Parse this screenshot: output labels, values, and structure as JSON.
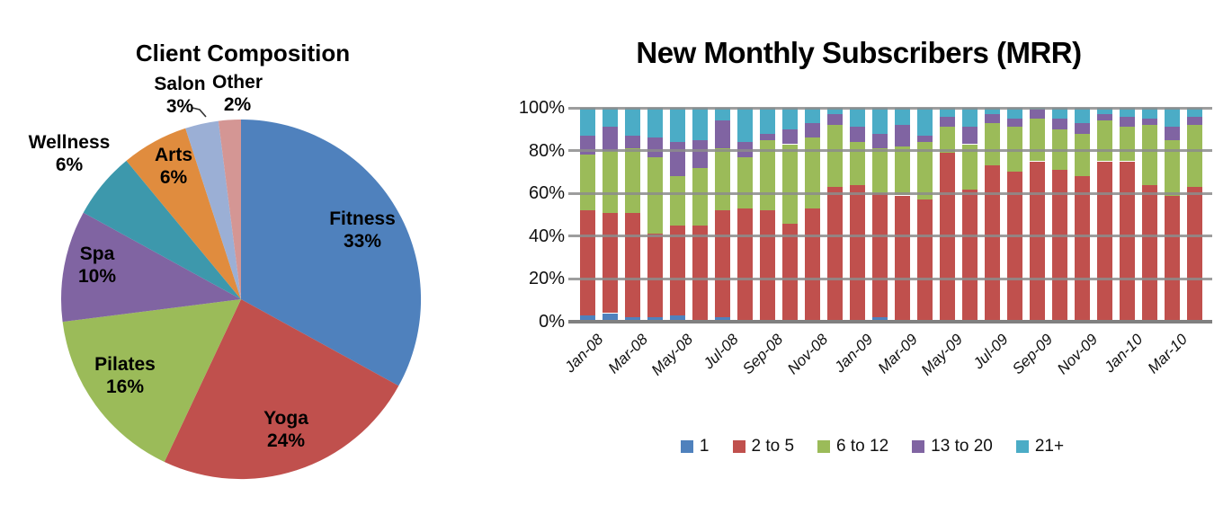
{
  "chart_data": [
    {
      "type": "pie",
      "title": "Client Composition",
      "start_angle_deg": -90,
      "direction": "clockwise",
      "slices": [
        {
          "label": "Fitness",
          "value": 33,
          "value_label": "33%",
          "color": "#4F81BD"
        },
        {
          "label": "Yoga",
          "value": 24,
          "value_label": "24%",
          "color": "#C0504D"
        },
        {
          "label": "Pilates",
          "value": 16,
          "value_label": "16%",
          "color": "#9BBB59"
        },
        {
          "label": "Spa",
          "value": 10,
          "value_label": "10%",
          "color": "#8064A2"
        },
        {
          "label": "Wellness",
          "value": 6,
          "value_label": "6%",
          "color": "#3D98AC"
        },
        {
          "label": "Arts",
          "value": 6,
          "value_label": "6%",
          "color": "#E08C3E"
        },
        {
          "label": "Salon",
          "value": 3,
          "value_label": "3%",
          "color": "#9BAFD5"
        },
        {
          "label": "Other",
          "value": 2,
          "value_label": "2%",
          "color": "#D49694"
        }
      ]
    },
    {
      "type": "bar",
      "stacked": true,
      "percent_stacked": true,
      "title": "New Monthly Subscribers (MRR)",
      "ylabel": "",
      "xlabel": "",
      "ylim": [
        0,
        100
      ],
      "grid": true,
      "legend_position": "bottom",
      "y_ticks": [
        "0%",
        "20%",
        "40%",
        "60%",
        "80%",
        "100%"
      ],
      "categories": [
        "Jan-08",
        "Feb-08",
        "Mar-08",
        "Apr-08",
        "May-08",
        "Jun-08",
        "Jul-08",
        "Aug-08",
        "Sep-08",
        "Oct-08",
        "Nov-08",
        "Dec-08",
        "Jan-09",
        "Feb-09",
        "Mar-09",
        "Apr-09",
        "May-09",
        "Jun-09",
        "Jul-09",
        "Aug-09",
        "Sep-09",
        "Oct-09",
        "Nov-09",
        "Dec-09",
        "Jan-10",
        "Feb-10",
        "Mar-10",
        "Apr-10"
      ],
      "x_tick_labels": [
        "Jan-08",
        "Mar-08",
        "May-08",
        "Jul-08",
        "Sep-08",
        "Nov-08",
        "Jan-09",
        "Mar-09",
        "May-09",
        "Jul-09",
        "Sep-09",
        "Nov-09",
        "Jan-10",
        "Mar-10"
      ],
      "series": [
        {
          "name": "1",
          "color": "#4F81BD",
          "values": [
            3,
            4,
            2,
            2,
            3,
            0,
            2,
            0,
            0,
            1,
            1,
            0,
            1,
            2,
            0,
            1,
            1,
            0,
            1,
            0,
            0,
            0,
            0,
            0,
            0,
            0,
            0,
            0
          ]
        },
        {
          "name": "2 to 5",
          "color": "#C0504D",
          "values": [
            49,
            47,
            49,
            39,
            42,
            45,
            50,
            53,
            52,
            45,
            52,
            63,
            63,
            58,
            59,
            56,
            78,
            62,
            72,
            70,
            75,
            71,
            68,
            75,
            75,
            64,
            59,
            63
          ]
        },
        {
          "name": "6 to 12",
          "color": "#9BBB59",
          "values": [
            26,
            29,
            30,
            36,
            23,
            27,
            29,
            24,
            33,
            37,
            33,
            29,
            20,
            21,
            23,
            27,
            12,
            21,
            20,
            21,
            20,
            19,
            20,
            19,
            16,
            28,
            26,
            29
          ]
        },
        {
          "name": "13 to 20",
          "color": "#8064A2",
          "values": [
            9,
            11,
            6,
            9,
            16,
            13,
            13,
            7,
            3,
            7,
            7,
            5,
            7,
            7,
            10,
            3,
            5,
            8,
            4,
            4,
            4,
            5,
            5,
            3,
            5,
            3,
            6,
            4
          ]
        },
        {
          "name": "21+",
          "color": "#4BACC6",
          "values": [
            13,
            9,
            13,
            14,
            16,
            15,
            6,
            16,
            12,
            10,
            7,
            3,
            9,
            12,
            8,
            13,
            4,
            9,
            3,
            5,
            1,
            5,
            7,
            3,
            4,
            5,
            9,
            4
          ]
        }
      ]
    }
  ]
}
